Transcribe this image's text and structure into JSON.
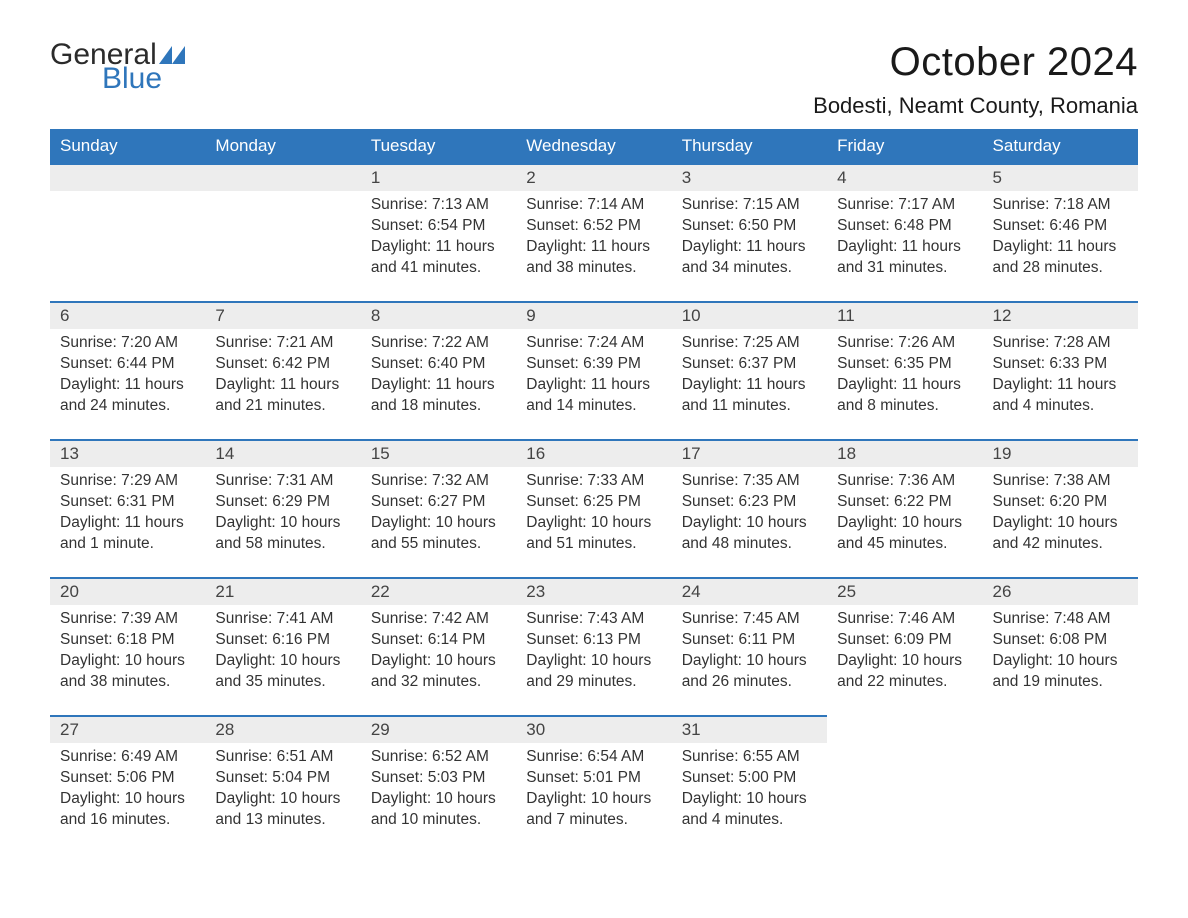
{
  "logo": {
    "word1": "General",
    "word2": "Blue",
    "word1_color": "#2b2b2b",
    "word2_color": "#2f76bb",
    "flag_color": "#2f76bb"
  },
  "title": "October 2024",
  "location": "Bodesti, Neamt County, Romania",
  "colors": {
    "header_bg": "#2f76bb",
    "header_text": "#ffffff",
    "daynum_bg": "#ededed",
    "row_border": "#2f76bb",
    "body_text": "#333333",
    "background": "#ffffff"
  },
  "typography": {
    "title_fontsize": 40,
    "location_fontsize": 22,
    "header_fontsize": 17,
    "daynum_fontsize": 17,
    "content_fontsize": 15.5,
    "logo_fontsize": 30
  },
  "layout": {
    "columns": 7,
    "rows": 5,
    "col_width_pct": 14.28
  },
  "weekdays": [
    "Sunday",
    "Monday",
    "Tuesday",
    "Wednesday",
    "Thursday",
    "Friday",
    "Saturday"
  ],
  "labels": {
    "sunrise": "Sunrise:",
    "sunset": "Sunset:",
    "daylight": "Daylight:"
  },
  "weeks": [
    [
      null,
      null,
      {
        "d": "1",
        "sr": "7:13 AM",
        "ss": "6:54 PM",
        "dl": "11 hours and 41 minutes."
      },
      {
        "d": "2",
        "sr": "7:14 AM",
        "ss": "6:52 PM",
        "dl": "11 hours and 38 minutes."
      },
      {
        "d": "3",
        "sr": "7:15 AM",
        "ss": "6:50 PM",
        "dl": "11 hours and 34 minutes."
      },
      {
        "d": "4",
        "sr": "7:17 AM",
        "ss": "6:48 PM",
        "dl": "11 hours and 31 minutes."
      },
      {
        "d": "5",
        "sr": "7:18 AM",
        "ss": "6:46 PM",
        "dl": "11 hours and 28 minutes."
      }
    ],
    [
      {
        "d": "6",
        "sr": "7:20 AM",
        "ss": "6:44 PM",
        "dl": "11 hours and 24 minutes."
      },
      {
        "d": "7",
        "sr": "7:21 AM",
        "ss": "6:42 PM",
        "dl": "11 hours and 21 minutes."
      },
      {
        "d": "8",
        "sr": "7:22 AM",
        "ss": "6:40 PM",
        "dl": "11 hours and 18 minutes."
      },
      {
        "d": "9",
        "sr": "7:24 AM",
        "ss": "6:39 PM",
        "dl": "11 hours and 14 minutes."
      },
      {
        "d": "10",
        "sr": "7:25 AM",
        "ss": "6:37 PM",
        "dl": "11 hours and 11 minutes."
      },
      {
        "d": "11",
        "sr": "7:26 AM",
        "ss": "6:35 PM",
        "dl": "11 hours and 8 minutes."
      },
      {
        "d": "12",
        "sr": "7:28 AM",
        "ss": "6:33 PM",
        "dl": "11 hours and 4 minutes."
      }
    ],
    [
      {
        "d": "13",
        "sr": "7:29 AM",
        "ss": "6:31 PM",
        "dl": "11 hours and 1 minute."
      },
      {
        "d": "14",
        "sr": "7:31 AM",
        "ss": "6:29 PM",
        "dl": "10 hours and 58 minutes."
      },
      {
        "d": "15",
        "sr": "7:32 AM",
        "ss": "6:27 PM",
        "dl": "10 hours and 55 minutes."
      },
      {
        "d": "16",
        "sr": "7:33 AM",
        "ss": "6:25 PM",
        "dl": "10 hours and 51 minutes."
      },
      {
        "d": "17",
        "sr": "7:35 AM",
        "ss": "6:23 PM",
        "dl": "10 hours and 48 minutes."
      },
      {
        "d": "18",
        "sr": "7:36 AM",
        "ss": "6:22 PM",
        "dl": "10 hours and 45 minutes."
      },
      {
        "d": "19",
        "sr": "7:38 AM",
        "ss": "6:20 PM",
        "dl": "10 hours and 42 minutes."
      }
    ],
    [
      {
        "d": "20",
        "sr": "7:39 AM",
        "ss": "6:18 PM",
        "dl": "10 hours and 38 minutes."
      },
      {
        "d": "21",
        "sr": "7:41 AM",
        "ss": "6:16 PM",
        "dl": "10 hours and 35 minutes."
      },
      {
        "d": "22",
        "sr": "7:42 AM",
        "ss": "6:14 PM",
        "dl": "10 hours and 32 minutes."
      },
      {
        "d": "23",
        "sr": "7:43 AM",
        "ss": "6:13 PM",
        "dl": "10 hours and 29 minutes."
      },
      {
        "d": "24",
        "sr": "7:45 AM",
        "ss": "6:11 PM",
        "dl": "10 hours and 26 minutes."
      },
      {
        "d": "25",
        "sr": "7:46 AM",
        "ss": "6:09 PM",
        "dl": "10 hours and 22 minutes."
      },
      {
        "d": "26",
        "sr": "7:48 AM",
        "ss": "6:08 PM",
        "dl": "10 hours and 19 minutes."
      }
    ],
    [
      {
        "d": "27",
        "sr": "6:49 AM",
        "ss": "5:06 PM",
        "dl": "10 hours and 16 minutes."
      },
      {
        "d": "28",
        "sr": "6:51 AM",
        "ss": "5:04 PM",
        "dl": "10 hours and 13 minutes."
      },
      {
        "d": "29",
        "sr": "6:52 AM",
        "ss": "5:03 PM",
        "dl": "10 hours and 10 minutes."
      },
      {
        "d": "30",
        "sr": "6:54 AM",
        "ss": "5:01 PM",
        "dl": "10 hours and 7 minutes."
      },
      {
        "d": "31",
        "sr": "6:55 AM",
        "ss": "5:00 PM",
        "dl": "10 hours and 4 minutes."
      },
      null,
      null
    ]
  ]
}
